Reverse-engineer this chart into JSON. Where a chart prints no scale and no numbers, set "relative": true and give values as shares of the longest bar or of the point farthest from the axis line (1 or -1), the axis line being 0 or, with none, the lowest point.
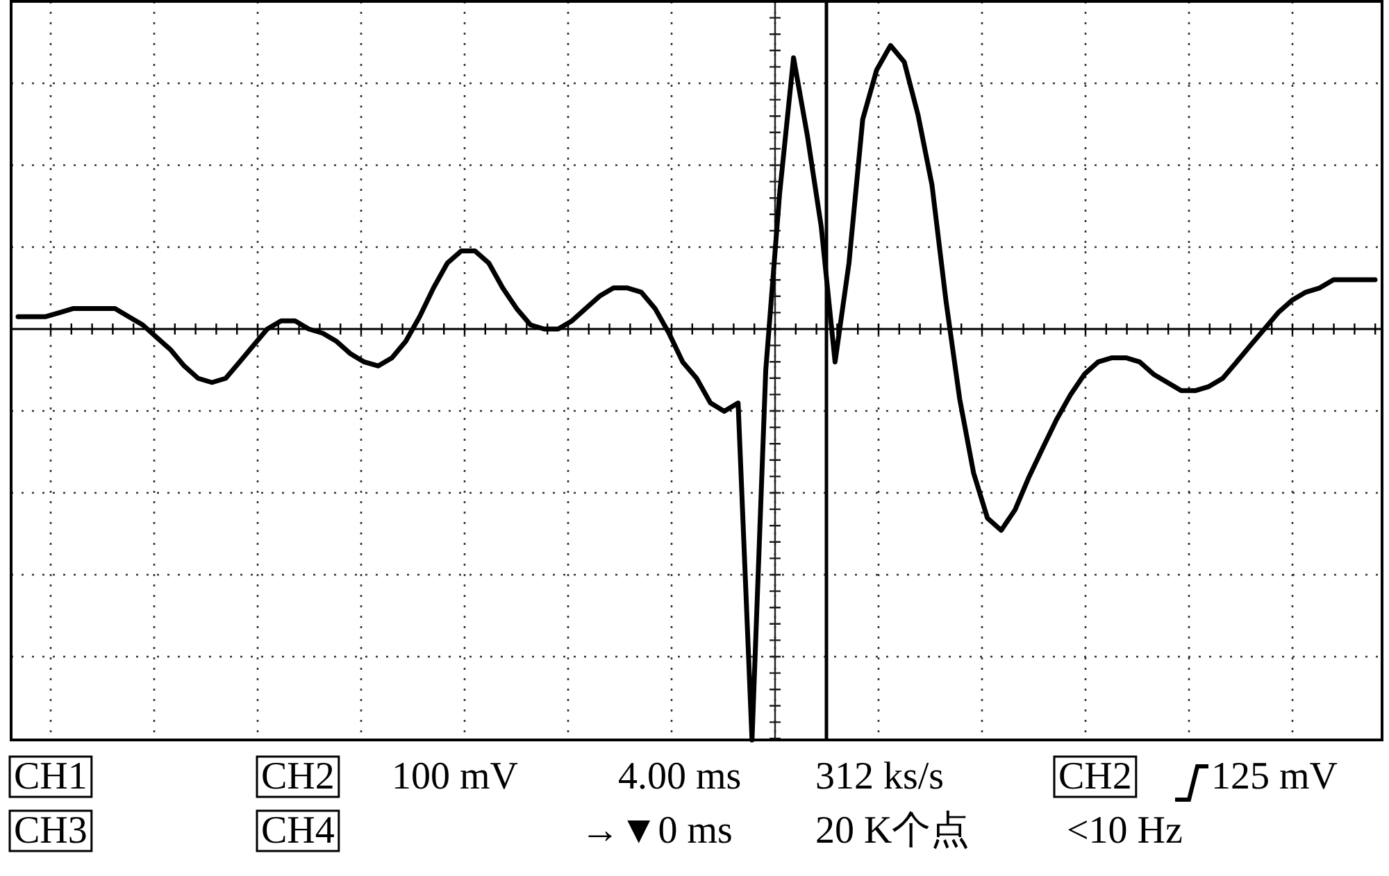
{
  "chart_data": {
    "type": "line",
    "relative": true,
    "grid": true,
    "categories": [
      null,
      null,
      null,
      null,
      null,
      null,
      null,
      null,
      null,
      null,
      null,
      null,
      null,
      null,
      null,
      null,
      null,
      null,
      null,
      null,
      null,
      null,
      null,
      null,
      null,
      null,
      null,
      null,
      null,
      null,
      null,
      null,
      null,
      null,
      null,
      null,
      null,
      null,
      null,
      null,
      null,
      null,
      null,
      null,
      null,
      null,
      null,
      null,
      null,
      null,
      null,
      null,
      null,
      null,
      null,
      null,
      null,
      null,
      null,
      null,
      null,
      null,
      null,
      null,
      null,
      null,
      null,
      null,
      null,
      null,
      null,
      null,
      null,
      null,
      null,
      null,
      null,
      null,
      null,
      null,
      null,
      null,
      null,
      null,
      null,
      null,
      null,
      null,
      null,
      null,
      null,
      null,
      null,
      null,
      null,
      null,
      null,
      null,
      null
    ],
    "series": [
      {
        "color": "#000000",
        "values": [
          0.03,
          0.03,
          0.03,
          0.04,
          0.05,
          0.05,
          0.05,
          0.05,
          0.03,
          0.01,
          -0.02,
          -0.05,
          -0.09,
          -0.12,
          -0.13,
          -0.12,
          -0.08,
          -0.04,
          0,
          0.02,
          0.02,
          0,
          -0.01,
          -0.03,
          -0.06,
          -0.08,
          -0.09,
          -0.07,
          -0.03,
          0.03,
          0.1,
          0.16,
          0.19,
          0.19,
          0.16,
          0.1,
          0.05,
          0.01,
          0,
          0,
          0.02,
          0.05,
          0.08,
          0.1,
          0.1,
          0.09,
          0.05,
          -0.01,
          -0.08,
          -0.12,
          -0.18,
          -0.2,
          -0.18,
          -1,
          -0.1,
          0.33,
          0.66,
          0.47,
          0.25,
          -0.08,
          0.16,
          0.51,
          0.63,
          0.69,
          0.65,
          0.52,
          0.35,
          0.07,
          -0.17,
          -0.35,
          -0.46,
          -0.49,
          -0.44,
          -0.36,
          -0.29,
          -0.22,
          -0.16,
          -0.11,
          -0.08,
          -0.07,
          -0.07,
          -0.08,
          -0.11,
          -0.13,
          -0.15,
          -0.15,
          -0.14,
          -0.12,
          -0.08,
          -0.04,
          0,
          0.04,
          0.07,
          0.09,
          0.1,
          0.12,
          0.12,
          0.12,
          0.12
        ]
      }
    ],
    "annotations": [
      "CH1",
      "CH2",
      "100 mV",
      "4.00 ms",
      "312 ks/s",
      "CH2",
      "125 mV",
      "CH3",
      "CH4",
      "→▼0 ms",
      "20 K个点",
      "<10 Hz"
    ]
  }
}
